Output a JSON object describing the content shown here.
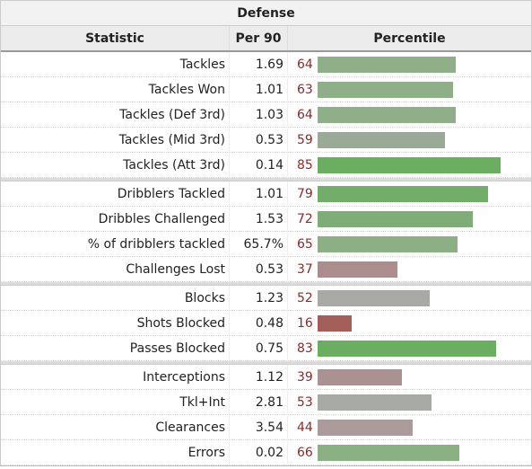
{
  "table": {
    "title": "Defense",
    "columns": {
      "statistic": "Statistic",
      "per90": "Per 90",
      "percentile": "Percentile"
    },
    "groups": [
      [
        {
          "stat": "Tackles",
          "per90": "1.69",
          "pct": 64,
          "color": "#8faf88"
        },
        {
          "stat": "Tackles Won",
          "per90": "1.01",
          "pct": 63,
          "color": "#8faf88"
        },
        {
          "stat": "Tackles (Def 3rd)",
          "per90": "1.03",
          "pct": 64,
          "color": "#8faf88"
        },
        {
          "stat": "Tackles (Mid 3rd)",
          "per90": "0.53",
          "pct": 59,
          "color": "#9aaa96"
        },
        {
          "stat": "Tackles (Att 3rd)",
          "per90": "0.14",
          "pct": 85,
          "color": "#6bae62"
        }
      ],
      [
        {
          "stat": "Dribblers Tackled",
          "per90": "1.01",
          "pct": 79,
          "color": "#72ad69"
        },
        {
          "stat": "Dribbles Challenged",
          "per90": "1.53",
          "pct": 72,
          "color": "#7fad77"
        },
        {
          "stat": "% of dribblers tackled",
          "per90": "65.7%",
          "pct": 65,
          "color": "#8caf85"
        },
        {
          "stat": "Challenges Lost",
          "per90": "0.53",
          "pct": 37,
          "color": "#ab8d8d"
        }
      ],
      [
        {
          "stat": "Blocks",
          "per90": "1.23",
          "pct": 52,
          "color": "#a8a8a4"
        },
        {
          "stat": "Shots Blocked",
          "per90": "0.48",
          "pct": 16,
          "color": "#a35e5a"
        },
        {
          "stat": "Passes Blocked",
          "per90": "0.75",
          "pct": 83,
          "color": "#6bae62"
        }
      ],
      [
        {
          "stat": "Interceptions",
          "per90": "1.12",
          "pct": 39,
          "color": "#ab9292"
        },
        {
          "stat": "Tkl+Int",
          "per90": "2.81",
          "pct": 53,
          "color": "#a6aaa2"
        },
        {
          "stat": "Clearances",
          "per90": "3.54",
          "pct": 44,
          "color": "#ab9a9a"
        },
        {
          "stat": "Errors",
          "per90": "0.02",
          "pct": 66,
          "color": "#8aaf83"
        }
      ]
    ]
  }
}
